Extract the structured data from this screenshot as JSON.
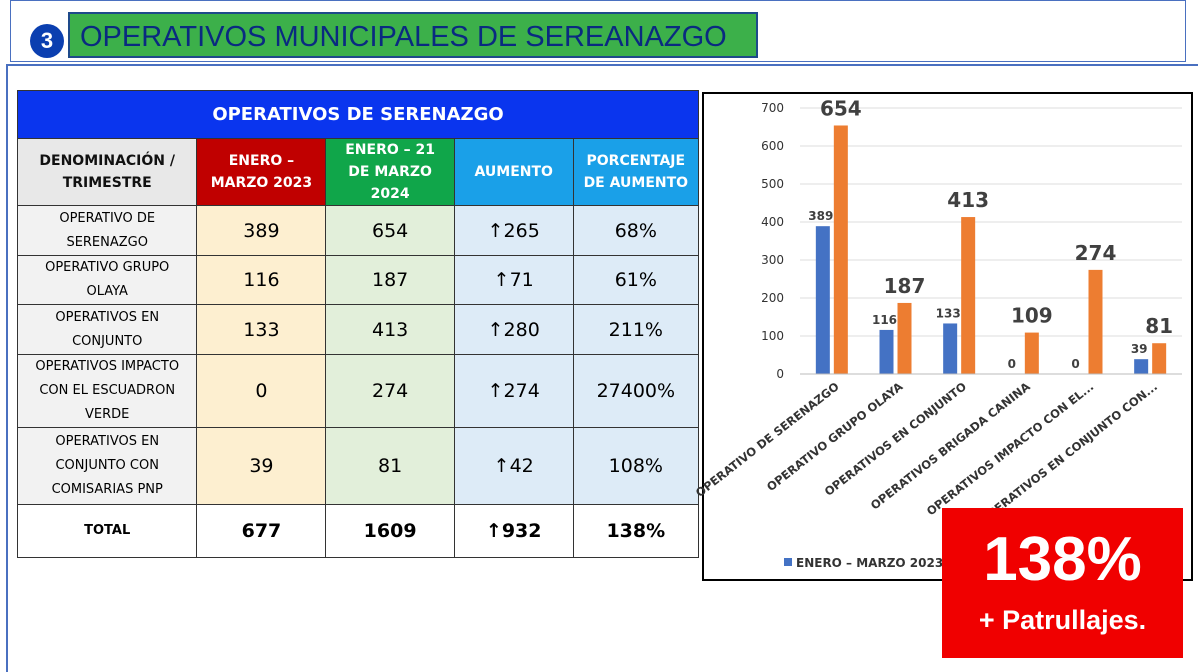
{
  "header": {
    "number": "3",
    "title": "OPERATIVOS MUNICIPALES DE SEREANAZGO"
  },
  "table": {
    "title": "OPERATIVOS DE SERENAZGO",
    "columns": [
      "DENOMINACIÓN / TRIMESTRE",
      "ENERO – MARZO 2023",
      "ENERO – 21 DE MARZO 2024",
      "AUMENTO",
      "PORCENTAJE DE AUMENTO"
    ],
    "rows": [
      [
        "OPERATIVO DE SERENAZGO",
        "389",
        "654",
        "↑265",
        "68%"
      ],
      [
        "OPERATIVO GRUPO OLAYA",
        "116",
        "187",
        "↑71",
        "61%"
      ],
      [
        "OPERATIVOS EN CONJUNTO",
        "133",
        "413",
        "↑280",
        "211%"
      ],
      [
        "OPERATIVOS IMPACTO CON EL ESCUADRON VERDE",
        "0",
        "274",
        "↑274",
        "27400%"
      ],
      [
        "OPERATIVOS EN CONJUNTO CON COMISARIAS PNP",
        "39",
        "81",
        "↑42",
        "108%"
      ],
      [
        "TOTAL",
        "677",
        "1609",
        "↑932",
        "138%"
      ]
    ]
  },
  "chart_data": {
    "type": "bar",
    "categories": [
      "OPERATIVO DE SERENAZGO",
      "OPERATIVO GRUPO OLAYA",
      "OPERATIVOS EN CONJUNTO",
      "OPERATIVOS BRIGADA CANINA",
      "OPERATIVOS IMPACTO CON EL...",
      "OPERATIVOS EN CONJUNTO CON..."
    ],
    "series": [
      {
        "name": "ENERO – MARZO 2023",
        "color": "#4472c4",
        "values": [
          389,
          116,
          133,
          0,
          0,
          39
        ]
      },
      {
        "color": "#ed7d31",
        "values": [
          654,
          187,
          413,
          109,
          274,
          81
        ]
      }
    ],
    "ylim": [
      0,
      700
    ],
    "yticks": [
      0,
      100,
      200,
      300,
      400,
      500,
      600,
      700
    ],
    "grid": true
  },
  "badge": {
    "value": "138%",
    "text": "+ Patrullajes."
  }
}
